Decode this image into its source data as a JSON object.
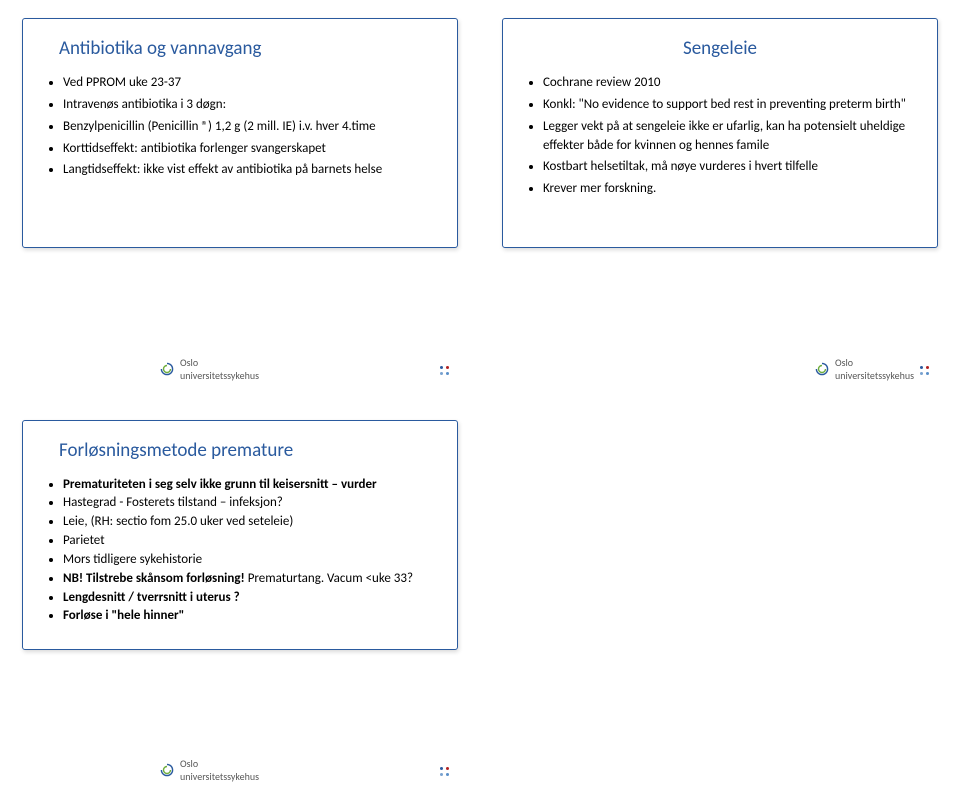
{
  "colors": {
    "title": "#2a5a9e",
    "border": "#2a5a9e",
    "text": "#000000",
    "footer_text": "#5a5a5a",
    "dot1": "#2a5a9e",
    "dot2": "#b22222",
    "dot3": "#7aa3d0",
    "dot4": "#5a8fc9",
    "logo_blue": "#2a5a9e",
    "logo_green": "#6fae3d"
  },
  "slides": {
    "tl": {
      "title": "Antibiotika og vannavgang",
      "items": [
        "Ved PPROM uke 23-37",
        "Intravenøs antibiotika i 3 døgn:",
        "Benzylpenicillin (Penicillin ®) 1,2 g (2 mill. IE) i.v. hver 4.time",
        "Korttidseffekt: antibiotika forlenger svangerskapet",
        "Langtidseffekt: ikke vist effekt av antibiotika på barnets helse"
      ]
    },
    "tr": {
      "title": "Sengeleie",
      "items": [
        "Cochrane review 2010",
        "Konkl: \"No evidence to support bed rest in preventing preterm birth\"",
        "Legger vekt på at sengeleie ikke er ufarlig, kan ha potensielt uheldige effekter både for kvinnen og hennes famile",
        "Kostbart helsetiltak, må nøye vurderes i hvert tilfelle",
        "Krever mer forskning."
      ]
    },
    "bl": {
      "title": "Forløsningsmetode premature",
      "items": [
        {
          "text": "Prematuriteten i seg selv ikke grunn til keisersnitt – vurder",
          "bold": true
        },
        {
          "text": "Hastegrad - Fosterets tilstand – infeksjon?"
        },
        {
          "text": "Leie, (RH: sectio fom 25.0 uker ved seteleie)"
        },
        {
          "text": "Parietet"
        },
        {
          "text": "Mors tidligere sykehistorie"
        },
        {
          "text": "NB!  Tilstrebe skånsom forløsning!",
          "tail": " Prematurtang. Vacum <uke 33?",
          "bold": true
        },
        {
          "text": "Lengdesnitt / tverrsnitt i  uterus ?",
          "bold": true
        },
        {
          "text": "Forløse i \"hele hinner\"",
          "bold": true
        }
      ]
    }
  },
  "footer": {
    "org": "Oslo",
    "org2": "universitetssykehus"
  }
}
